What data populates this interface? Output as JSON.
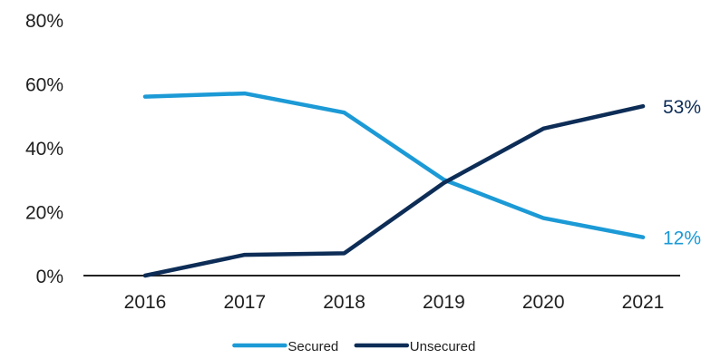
{
  "chart_data": {
    "type": "line",
    "categories": [
      "2016",
      "2017",
      "2018",
      "2019",
      "2020",
      "2021"
    ],
    "series": [
      {
        "name": "Secured",
        "color": "#1c9ad6",
        "values": [
          56,
          57,
          51,
          30,
          18,
          12
        ],
        "end_label": "12%"
      },
      {
        "name": "Unsecured",
        "color": "#0d2d57",
        "values": [
          0,
          6.5,
          7,
          29,
          46,
          53
        ],
        "end_label": "53%"
      }
    ],
    "y_ticks": [
      {
        "value": 0,
        "label": "0%"
      },
      {
        "value": 20,
        "label": "20%"
      },
      {
        "value": 40,
        "label": "40%"
      },
      {
        "value": 60,
        "label": "60%"
      },
      {
        "value": 80,
        "label": "80%"
      }
    ],
    "ylim": [
      0,
      80
    ],
    "title": "",
    "xlabel": "",
    "ylabel": "",
    "grid": false,
    "legend_position": "bottom-center"
  }
}
